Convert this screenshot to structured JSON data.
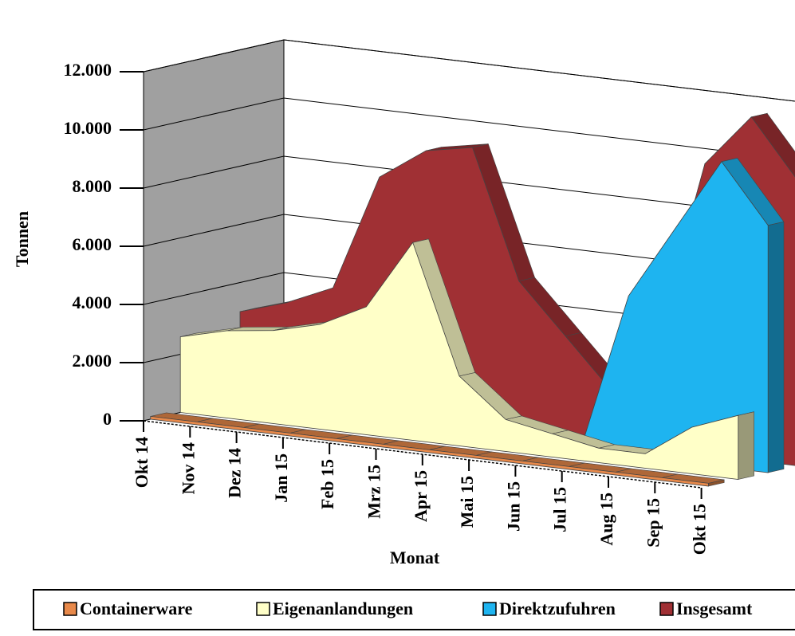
{
  "chart_data": {
    "type": "area3d",
    "categories": [
      "Okt 14",
      "Nov 14",
      "Dez 14",
      "Jan 15",
      "Feb 15",
      "Mrz 15",
      "Apr 15",
      "Mai 15",
      "Jun 15",
      "Jul 15",
      "Aug 15",
      "Sep 15",
      "Okt 15"
    ],
    "x_label": "Monat",
    "y_label": "Tonnen",
    "ylim": [
      0,
      12000
    ],
    "yticks": [
      {
        "value": 0,
        "label": "0"
      },
      {
        "value": 2000,
        "label": "2.000"
      },
      {
        "value": 4000,
        "label": "4.000"
      },
      {
        "value": 6000,
        "label": "6.000"
      },
      {
        "value": 8000,
        "label": "8.000"
      },
      {
        "value": 10000,
        "label": "10.000"
      },
      {
        "value": 12000,
        "label": "12.000"
      }
    ],
    "grid": true,
    "legend": "bottom",
    "series": [
      {
        "name": "Containerware",
        "color": "#e8894a",
        "values": [
          100,
          100,
          100,
          100,
          100,
          100,
          100,
          100,
          100,
          100,
          100,
          100,
          100
        ]
      },
      {
        "name": "Eigenanlandungen",
        "color": "#ffffc8",
        "values": [
          2600,
          3000,
          3200,
          3600,
          4400,
          6800,
          2400,
          1100,
          800,
          500,
          500,
          1600,
          2200
        ]
      },
      {
        "name": "Direktzufuhren",
        "color": "#1eb4f0",
        "values": [
          0,
          300,
          700,
          1200,
          700,
          600,
          400,
          300,
          200,
          5500,
          8000,
          10500,
          8500
        ]
      },
      {
        "name": "Insgesamt",
        "color": "#a03034",
        "values": [
          3000,
          3500,
          4200,
          8200,
          9300,
          9600,
          5200,
          3500,
          1800,
          4000,
          10000,
          11800,
          9800
        ]
      }
    ]
  }
}
